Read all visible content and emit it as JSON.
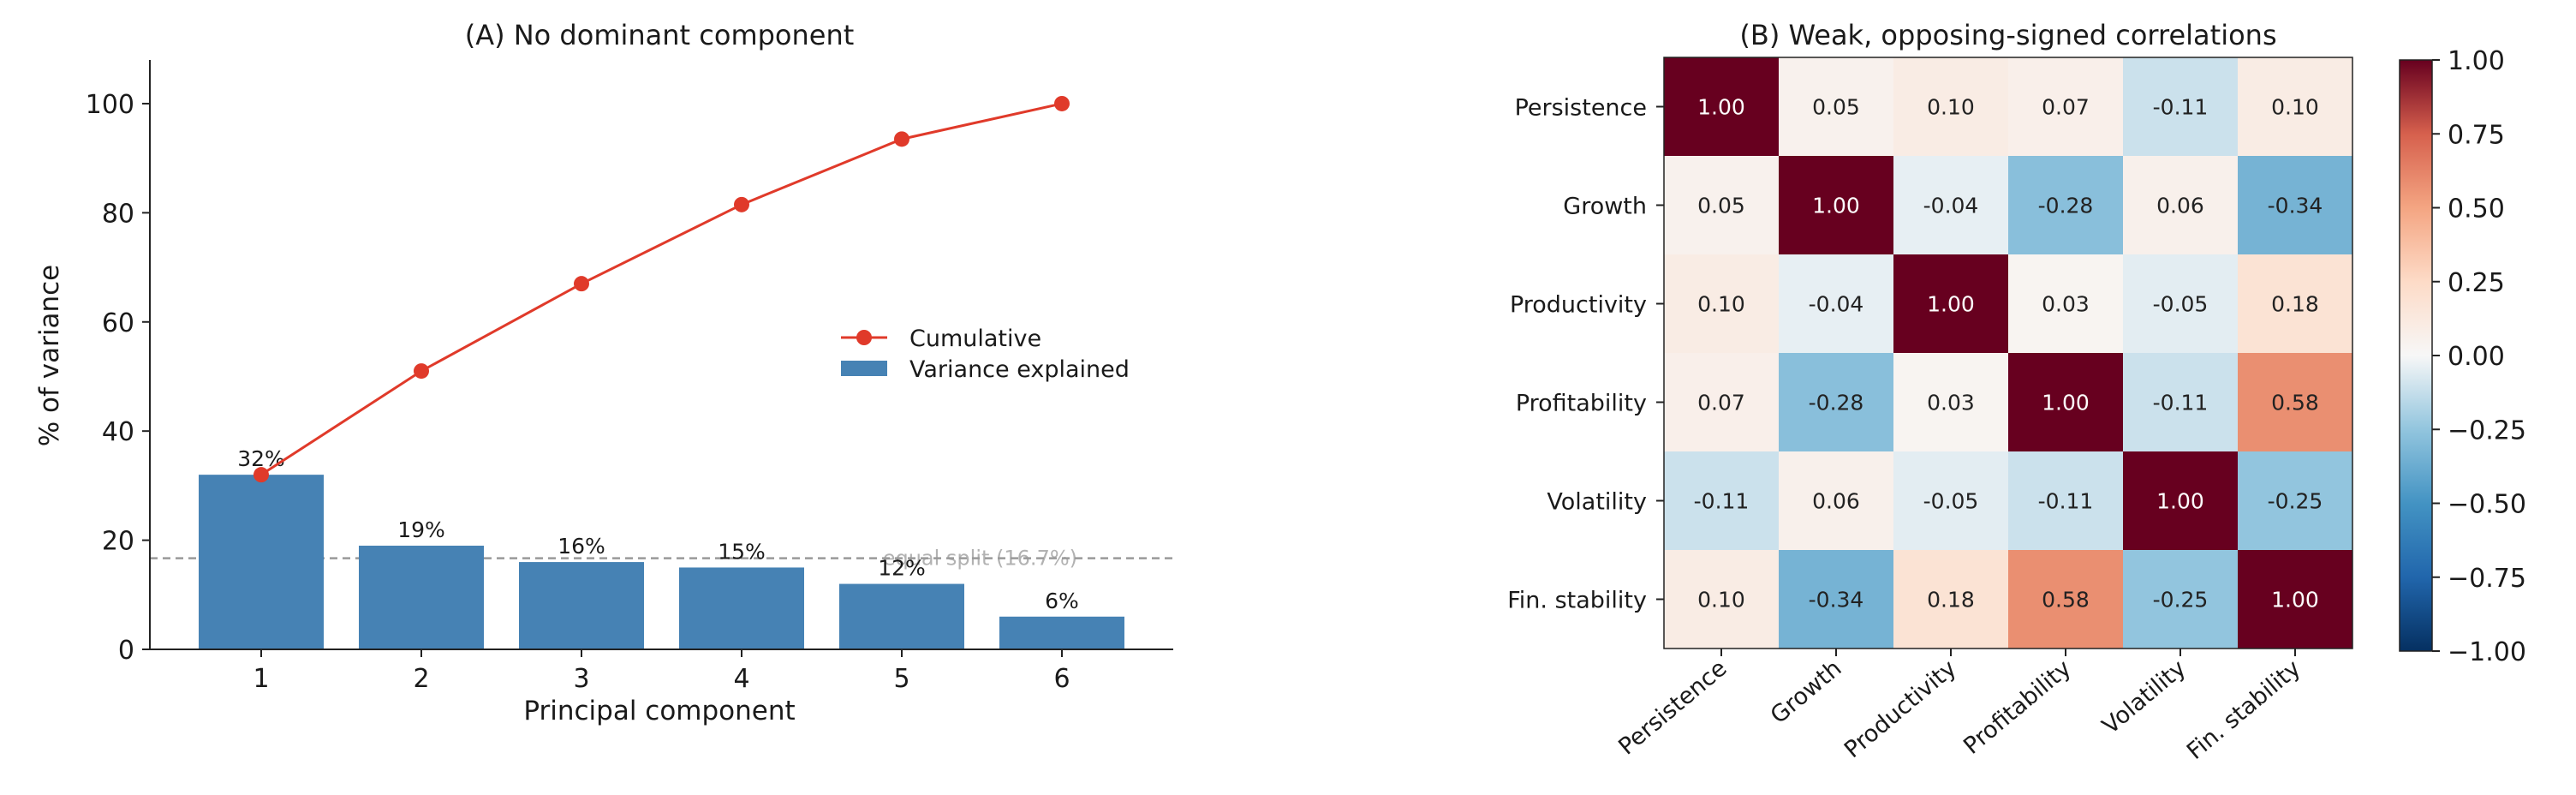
{
  "chart_data": [
    {
      "type": "bar",
      "title": "(A) No dominant component",
      "xlabel": "Principal component",
      "ylabel": "% of variance",
      "categories": [
        "1",
        "2",
        "3",
        "4",
        "5",
        "6"
      ],
      "ylim": [
        0,
        108
      ],
      "yticks": [
        0,
        20,
        40,
        60,
        80,
        100
      ],
      "grid": false,
      "series": [
        {
          "name": "Variance explained",
          "type": "bar",
          "values": [
            32,
            19,
            16,
            15,
            12,
            6
          ],
          "labels": [
            "32%",
            "19%",
            "16%",
            "15%",
            "12%",
            "6%"
          ],
          "color": "#4682b4"
        },
        {
          "name": "Cumulative",
          "type": "line",
          "values": [
            32,
            51,
            67,
            81.5,
            93.5,
            100
          ],
          "color": "#e03a2a"
        }
      ],
      "reference_line": {
        "value": 16.7,
        "label": "equal split (16.7%)",
        "color": "#999999"
      },
      "legend": {
        "placement": "center-right",
        "entries": [
          "Cumulative",
          "Variance explained"
        ]
      }
    },
    {
      "type": "heatmap",
      "title": "(B) Weak, opposing-signed correlations",
      "labels": [
        "Persistence",
        "Growth",
        "Productivity",
        "Profitability",
        "Volatility",
        "Fin. stability"
      ],
      "matrix": [
        [
          1.0,
          0.05,
          0.1,
          0.07,
          -0.11,
          0.1
        ],
        [
          0.05,
          1.0,
          -0.04,
          -0.28,
          0.06,
          -0.34
        ],
        [
          0.1,
          -0.04,
          1.0,
          0.03,
          -0.05,
          0.18
        ],
        [
          0.07,
          -0.28,
          0.03,
          1.0,
          -0.11,
          0.58
        ],
        [
          -0.11,
          0.06,
          -0.05,
          -0.11,
          1.0,
          -0.25
        ],
        [
          0.1,
          -0.34,
          0.18,
          0.58,
          -0.25,
          1.0
        ]
      ],
      "colorscale": "RdBu_r",
      "vmin": -1.0,
      "vmax": 1.0,
      "colorbar_ticks": [
        "1.00",
        "0.75",
        "0.50",
        "0.25",
        "0.00",
        "−0.25",
        "−0.50",
        "−0.75",
        "−1.00"
      ],
      "colorbar_tick_values": [
        1.0,
        0.75,
        0.5,
        0.25,
        0.0,
        -0.25,
        -0.5,
        -0.75,
        -1.0
      ]
    }
  ]
}
